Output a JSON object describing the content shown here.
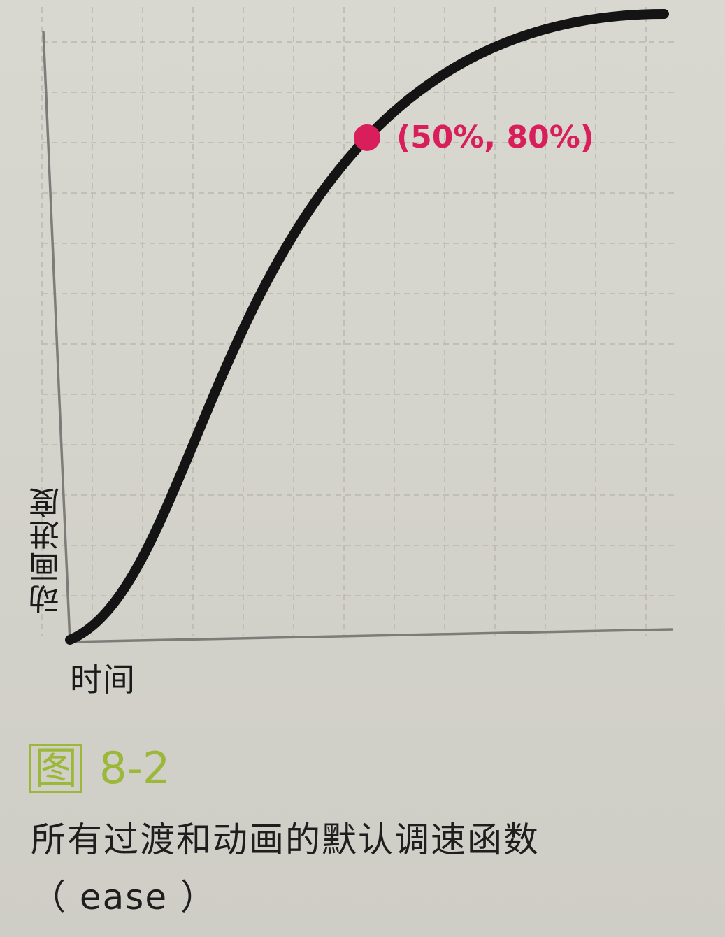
{
  "chart_data": {
    "type": "line",
    "title": "",
    "xlabel": "时间",
    "ylabel": "动画进度",
    "xlim": [
      0,
      1
    ],
    "ylim": [
      0,
      1
    ],
    "grid": true,
    "curve": "ease",
    "control_points": [
      [
        0.25,
        0.1
      ],
      [
        0.25,
        1.0
      ]
    ],
    "annotations": [
      {
        "x": 0.5,
        "y": 0.8,
        "label": "(50%, 80%)",
        "color": "#d81f5c"
      }
    ],
    "line_color": "#141414"
  },
  "figure": {
    "number_char": "图",
    "number": "8-2",
    "caption_line1": "所有过渡和动画的默认调速函数",
    "caption_line2": "（ ease ）"
  }
}
